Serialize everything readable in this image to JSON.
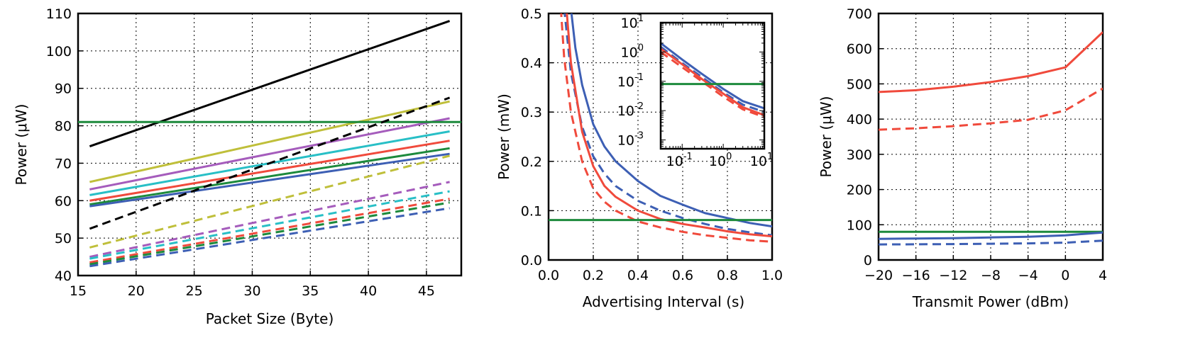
{
  "colors": {
    "black": "#000000",
    "olive": "#bfbf3a",
    "purple": "#a55cbc",
    "cyan": "#28bfc6",
    "red": "#f04a3c",
    "green": "#1d8a3c",
    "blue": "#3d5fb4"
  },
  "chart_data": [
    {
      "type": "line",
      "xlabel": "Packet Size (Byte)",
      "ylabel": "Power (μW)",
      "xlim": [
        15,
        48
      ],
      "ylim": [
        40,
        110
      ],
      "xticks": [
        "15",
        "20",
        "25",
        "30",
        "35",
        "40",
        "45"
      ],
      "yticks": [
        "40",
        "50",
        "60",
        "70",
        "80",
        "90",
        "100",
        "110"
      ],
      "grid": true,
      "series": [
        {
          "color": "black",
          "style": "solid",
          "x": [
            16,
            47
          ],
          "y": [
            74.5,
            108
          ]
        },
        {
          "color": "olive",
          "style": "solid",
          "x": [
            16,
            47
          ],
          "y": [
            65,
            86.5
          ]
        },
        {
          "color": "purple",
          "style": "solid",
          "x": [
            16,
            47
          ],
          "y": [
            63,
            82
          ]
        },
        {
          "color": "cyan",
          "style": "solid",
          "x": [
            16,
            47
          ],
          "y": [
            61.5,
            78.5
          ]
        },
        {
          "color": "red",
          "style": "solid",
          "x": [
            16,
            47
          ],
          "y": [
            60,
            76
          ]
        },
        {
          "color": "green",
          "style": "solid",
          "x": [
            16,
            47
          ],
          "y": [
            59,
            74
          ]
        },
        {
          "color": "blue",
          "style": "solid",
          "x": [
            16,
            47
          ],
          "y": [
            58.5,
            72.5
          ]
        },
        {
          "color": "green",
          "style": "solid",
          "x": [
            15,
            48
          ],
          "y": [
            81,
            81
          ]
        },
        {
          "color": "black",
          "style": "dashed",
          "x": [
            16,
            47
          ],
          "y": [
            52.5,
            87.5
          ]
        },
        {
          "color": "olive",
          "style": "dashed",
          "x": [
            16,
            47
          ],
          "y": [
            47.5,
            72
          ]
        },
        {
          "color": "purple",
          "style": "dashed",
          "x": [
            16,
            47
          ],
          "y": [
            45,
            65
          ]
        },
        {
          "color": "cyan",
          "style": "dashed",
          "x": [
            16,
            47
          ],
          "y": [
            44.5,
            62.5
          ]
        },
        {
          "color": "red",
          "style": "dashed",
          "x": [
            16,
            47
          ],
          "y": [
            43.5,
            60.5
          ]
        },
        {
          "color": "green",
          "style": "dashed",
          "x": [
            16,
            47
          ],
          "y": [
            43,
            59.5
          ]
        },
        {
          "color": "blue",
          "style": "dashed",
          "x": [
            16,
            47
          ],
          "y": [
            42.5,
            58
          ]
        }
      ]
    },
    {
      "type": "line",
      "xlabel": "Advertising Interval (s)",
      "ylabel": "Power (mW)",
      "xlim": [
        0,
        1
      ],
      "ylim": [
        0,
        0.5
      ],
      "xticks": [
        "0.0",
        "0.2",
        "0.4",
        "0.6",
        "0.8",
        "1.0"
      ],
      "yticks": [
        "0.0",
        "0.1",
        "0.2",
        "0.3",
        "0.4",
        "0.5"
      ],
      "grid": true,
      "series": [
        {
          "color": "blue",
          "style": "solid",
          "x": [
            0.1,
            0.12,
            0.15,
            0.2,
            0.25,
            0.3,
            0.4,
            0.5,
            0.6,
            0.7,
            0.8,
            0.9,
            1.0
          ],
          "y": [
            0.51,
            0.43,
            0.355,
            0.275,
            0.23,
            0.2,
            0.16,
            0.13,
            0.112,
            0.095,
            0.085,
            0.075,
            0.068
          ]
        },
        {
          "color": "blue",
          "style": "dashed",
          "x": [
            0.07,
            0.1,
            0.15,
            0.2,
            0.25,
            0.3,
            0.4,
            0.5,
            0.6,
            0.7,
            0.8,
            0.9,
            1.0
          ],
          "y": [
            0.51,
            0.38,
            0.27,
            0.21,
            0.175,
            0.15,
            0.12,
            0.1,
            0.085,
            0.073,
            0.063,
            0.056,
            0.05
          ]
        },
        {
          "color": "red",
          "style": "solid",
          "x": [
            0.08,
            0.1,
            0.15,
            0.2,
            0.25,
            0.3,
            0.4,
            0.5,
            0.6,
            0.7,
            0.8,
            0.9,
            1.0
          ],
          "y": [
            0.51,
            0.4,
            0.26,
            0.19,
            0.15,
            0.128,
            0.1,
            0.083,
            0.073,
            0.066,
            0.058,
            0.052,
            0.048
          ]
        },
        {
          "color": "red",
          "style": "dashed",
          "x": [
            0.055,
            0.07,
            0.1,
            0.15,
            0.2,
            0.25,
            0.3,
            0.4,
            0.5,
            0.6,
            0.7,
            0.8,
            0.9,
            1.0
          ],
          "y": [
            0.51,
            0.41,
            0.3,
            0.2,
            0.145,
            0.118,
            0.1,
            0.078,
            0.066,
            0.057,
            0.05,
            0.045,
            0.04,
            0.037
          ]
        },
        {
          "color": "green",
          "style": "solid",
          "x": [
            0,
            1
          ],
          "y": [
            0.081,
            0.081
          ]
        }
      ],
      "inset": {
        "type": "line",
        "xscale": "log",
        "yscale": "log",
        "xlim": [
          0.03,
          10
        ],
        "ylim": [
          0.0005,
          10
        ],
        "xticks": [
          "10",
          "10",
          "10"
        ],
        "xtick_exponents": [
          "-1",
          "0",
          "1"
        ],
        "yticks": [
          "10",
          "10",
          "10",
          "10",
          "10"
        ],
        "ytick_exponents": [
          "1",
          "0",
          "-1",
          "-2",
          "-3"
        ],
        "series": [
          {
            "color": "blue",
            "style": "solid",
            "x": [
              0.03,
              0.1,
              0.3,
              1,
              3,
              10
            ],
            "y": [
              2.0,
              0.55,
              0.18,
              0.055,
              0.021,
              0.012
            ]
          },
          {
            "color": "blue",
            "style": "dashed",
            "x": [
              0.03,
              0.1,
              0.3,
              1,
              3,
              10
            ],
            "y": [
              1.5,
              0.42,
              0.14,
              0.042,
              0.016,
              0.009
            ]
          },
          {
            "color": "red",
            "style": "solid",
            "x": [
              0.03,
              0.1,
              0.3,
              1,
              3,
              10
            ],
            "y": [
              1.3,
              0.38,
              0.12,
              0.038,
              0.013,
              0.007
            ]
          },
          {
            "color": "red",
            "style": "dashed",
            "x": [
              0.03,
              0.1,
              0.3,
              1,
              3,
              10
            ],
            "y": [
              1.0,
              0.3,
              0.1,
              0.03,
              0.011,
              0.006
            ]
          },
          {
            "color": "green",
            "style": "solid",
            "x": [
              0.03,
              10
            ],
            "y": [
              0.081,
              0.081
            ]
          }
        ]
      }
    },
    {
      "type": "line",
      "xlabel": "Transmit Power (dBm)",
      "ylabel": "Power (μW)",
      "xlim": [
        -20,
        4
      ],
      "ylim": [
        0,
        700
      ],
      "xticks": [
        "−20",
        "−16",
        "−12",
        "−8",
        "−4",
        "0",
        "4"
      ],
      "yticks": [
        "0",
        "100",
        "200",
        "300",
        "400",
        "500",
        "600",
        "700"
      ],
      "grid": true,
      "series": [
        {
          "color": "red",
          "style": "solid",
          "x": [
            -20,
            -16,
            -12,
            -8,
            -4,
            0,
            4
          ],
          "y": [
            477,
            482,
            492,
            505,
            522,
            547,
            647
          ]
        },
        {
          "color": "red",
          "style": "dashed",
          "x": [
            -20,
            -16,
            -12,
            -8,
            -4,
            0,
            4
          ],
          "y": [
            370,
            374,
            380,
            388,
            398,
            425,
            487
          ]
        },
        {
          "color": "green",
          "style": "solid",
          "x": [
            -20,
            4
          ],
          "y": [
            80,
            80
          ]
        },
        {
          "color": "blue",
          "style": "solid",
          "x": [
            -20,
            -16,
            -12,
            -8,
            -4,
            0,
            4
          ],
          "y": [
            60,
            61,
            62,
            64,
            66,
            70,
            78
          ]
        },
        {
          "color": "blue",
          "style": "dashed",
          "x": [
            -20,
            -16,
            -12,
            -8,
            -4,
            0,
            4
          ],
          "y": [
            44,
            44.5,
            45,
            46,
            47,
            49,
            55
          ]
        }
      ]
    }
  ]
}
